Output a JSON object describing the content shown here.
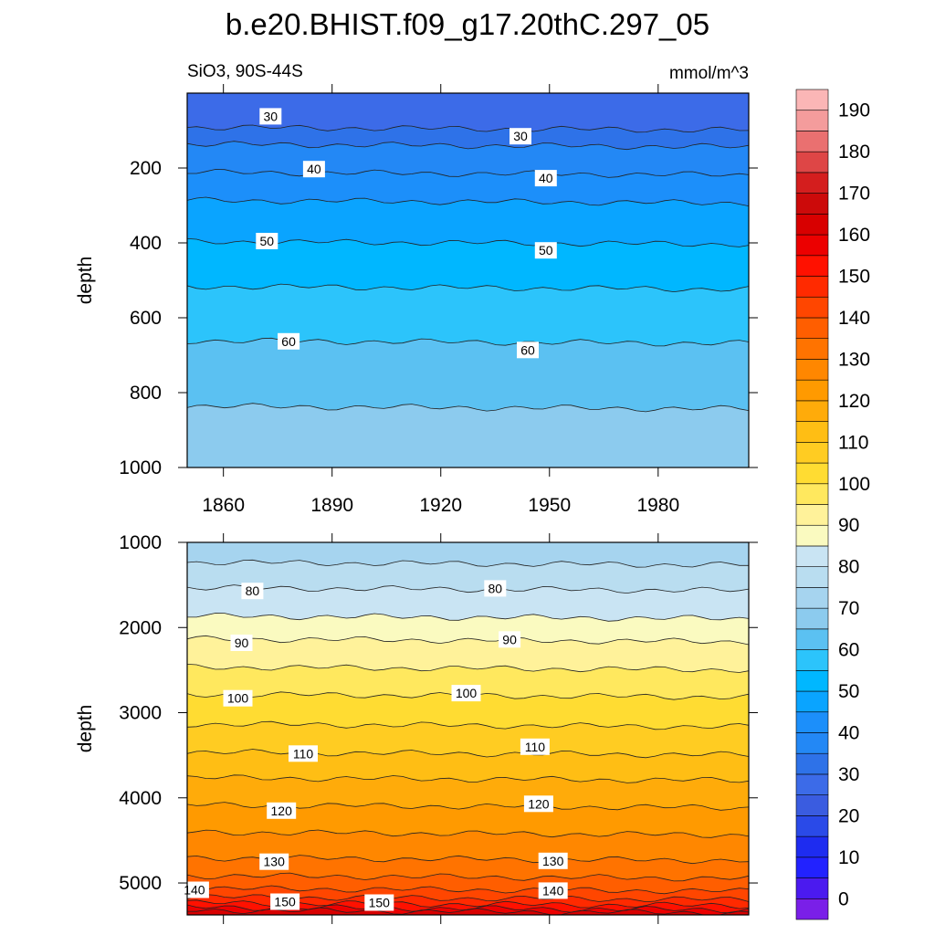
{
  "title": "b.e20.BHIST.f09_g17.20thC.297_05",
  "chart_data": [
    {
      "type": "contour",
      "panel": "upper",
      "left_string": "SiO3, 90S-44S",
      "right_string": "mmol/m^3",
      "ylabel": "depth",
      "xlim": [
        1850,
        2005
      ],
      "ylim": [
        1000,
        0
      ],
      "x_ticks": [
        1860,
        1890,
        1920,
        1950,
        1980
      ],
      "y_ticks": [
        200,
        400,
        600,
        800,
        1000
      ],
      "contour_lines": [
        {
          "level": 30,
          "depth": 95
        },
        {
          "level": 35,
          "depth": 140
        },
        {
          "level": 40,
          "depth": 215
        },
        {
          "level": 45,
          "depth": 290
        },
        {
          "level": 50,
          "depth": 400
        },
        {
          "level": 55,
          "depth": 520
        },
        {
          "level": 60,
          "depth": 665
        },
        {
          "level": 65,
          "depth": 840
        }
      ],
      "contour_labels": [
        {
          "text": "30",
          "x": 1873,
          "y": 62
        },
        {
          "text": "30",
          "x": 1942,
          "y": 115
        },
        {
          "text": "40",
          "x": 1885,
          "y": 203
        },
        {
          "text": "40",
          "x": 1949,
          "y": 227
        },
        {
          "text": "50",
          "x": 1872,
          "y": 395
        },
        {
          "text": "50",
          "x": 1949,
          "y": 420
        },
        {
          "text": "60",
          "x": 1878,
          "y": 663
        },
        {
          "text": "60",
          "x": 1944,
          "y": 686
        }
      ]
    },
    {
      "type": "contour",
      "panel": "lower",
      "ylabel": "depth",
      "xlim": [
        1850,
        2005
      ],
      "ylim": [
        5375,
        1000
      ],
      "y_ticks": [
        1000,
        2000,
        3000,
        4000,
        5000
      ],
      "contour_lines": [
        {
          "level": 75,
          "depth": 1250
        },
        {
          "level": 80,
          "depth": 1550
        },
        {
          "level": 85,
          "depth": 1880
        },
        {
          "level": 90,
          "depth": 2150
        },
        {
          "level": 95,
          "depth": 2480
        },
        {
          "level": 100,
          "depth": 2800
        },
        {
          "level": 105,
          "depth": 3150
        },
        {
          "level": 110,
          "depth": 3480
        },
        {
          "level": 115,
          "depth": 3780
        },
        {
          "level": 120,
          "depth": 4100
        },
        {
          "level": 125,
          "depth": 4420
        },
        {
          "level": 130,
          "depth": 4720
        },
        {
          "level": 135,
          "depth": 4930
        },
        {
          "level": 140,
          "depth": 5080
        },
        {
          "level": 145,
          "depth": 5180
        },
        {
          "level": 150,
          "depth": 5250
        },
        {
          "level": 155,
          "depth": 5300
        },
        {
          "level": 160,
          "depth": 5335
        }
      ],
      "contour_labels": [
        {
          "text": "80",
          "x": 1868,
          "y": 1570
        },
        {
          "text": "80",
          "x": 1935,
          "y": 1540
        },
        {
          "text": "90",
          "x": 1865,
          "y": 2180
        },
        {
          "text": "90",
          "x": 1939,
          "y": 2140
        },
        {
          "text": "100",
          "x": 1864,
          "y": 2830
        },
        {
          "text": "100",
          "x": 1927,
          "y": 2770
        },
        {
          "text": "110",
          "x": 1882,
          "y": 3480
        },
        {
          "text": "110",
          "x": 1946,
          "y": 3400
        },
        {
          "text": "120",
          "x": 1876,
          "y": 4150
        },
        {
          "text": "120",
          "x": 1947,
          "y": 4070
        },
        {
          "text": "130",
          "x": 1874,
          "y": 4750
        },
        {
          "text": "130",
          "x": 1951,
          "y": 4740
        },
        {
          "text": "140",
          "x": 1852,
          "y": 5080
        },
        {
          "text": "140",
          "x": 1951,
          "y": 5090
        },
        {
          "text": "150",
          "x": 1877,
          "y": 5220
        },
        {
          "text": "150",
          "x": 1903,
          "y": 5230
        }
      ]
    }
  ],
  "colorbar": {
    "min": -5,
    "max": 195,
    "step": 10,
    "labels": [
      0,
      10,
      20,
      30,
      40,
      50,
      60,
      70,
      80,
      90,
      100,
      110,
      120,
      130,
      140,
      150,
      160,
      170,
      180,
      190
    ],
    "colors": [
      "#7a1fe8",
      "#4b1aef",
      "#2222ff",
      "#1e2cf0",
      "#2a4ae8",
      "#3a5ce0",
      "#3c6be8",
      "#2e72e8",
      "#2388f5",
      "#1c8ffa",
      "#0aa4ff",
      "#00b7ff",
      "#2cc4fb",
      "#5bc1f2",
      "#8ccbee",
      "#a6d4ef",
      "#b9ddf0",
      "#c9e4f3",
      "#fafac0",
      "#fff29a",
      "#ffe85e",
      "#ffdc32",
      "#ffcc22",
      "#ffbe14",
      "#ffab0a",
      "#ff9a00",
      "#ff8700",
      "#ff7300",
      "#ff5e00",
      "#ff4600",
      "#ff2a00",
      "#ff1100",
      "#ec0000",
      "#d80000",
      "#cc0a0a",
      "#d41e1e",
      "#de4646",
      "#ea7070",
      "#f49c9c",
      "#fbb6b6"
    ]
  }
}
